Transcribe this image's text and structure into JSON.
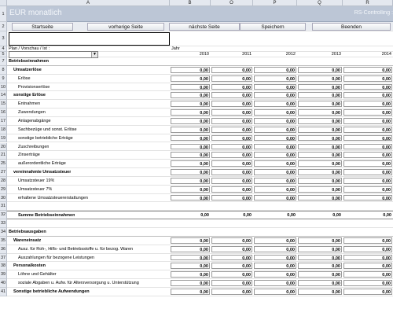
{
  "columns": [
    {
      "id": "A",
      "label": "A"
    },
    {
      "id": "B",
      "label": "B"
    },
    {
      "id": "O",
      "label": "O"
    },
    {
      "id": "P",
      "label": "P"
    },
    {
      "id": "Q",
      "label": "Q"
    },
    {
      "id": "R",
      "label": "R"
    }
  ],
  "header": {
    "title": "EÜR monatlich",
    "app": "RS-Controlling :"
  },
  "nav": {
    "start": "Startseite",
    "prev": "vorherige Seite",
    "next": "nächste Seite",
    "save": "Speichern",
    "quit": "Beenden"
  },
  "filter": {
    "label": "Plan / Vorschau / Ist :",
    "value": ""
  },
  "jahr_label": "Jahr",
  "years": [
    "2010",
    "2011",
    "2012",
    "2013",
    "2014"
  ],
  "rows": [
    {
      "n": "1"
    },
    {
      "n": "2"
    },
    {
      "n": "3"
    },
    {
      "n": "4"
    },
    {
      "n": "5"
    },
    {
      "n": "7",
      "label": "Betriebseinnahmen",
      "style": "section"
    },
    {
      "n": "8",
      "label": "Umsatzerlöse",
      "style": "group",
      "values": [
        "0,00",
        "0,00",
        "0,00",
        "0,00",
        "0,00"
      ]
    },
    {
      "n": "9",
      "label": "Erlöse",
      "style": "item",
      "values": [
        "0,00",
        "0,00",
        "0,00",
        "0,00",
        "0,00"
      ]
    },
    {
      "n": "10",
      "label": "Provisionserlöse",
      "style": "item",
      "values": [
        "0,00",
        "0,00",
        "0,00",
        "0,00",
        "0,00"
      ]
    },
    {
      "n": "14",
      "label": "sonstige Erlöse",
      "style": "group",
      "values": [
        "0,00",
        "0,00",
        "0,00",
        "0,00",
        "0,00"
      ]
    },
    {
      "n": "15",
      "label": "Entnahmen",
      "style": "item",
      "values": [
        "0,00",
        "0,00",
        "0,00",
        "0,00",
        "0,00"
      ]
    },
    {
      "n": "16",
      "label": "Zuwendungen",
      "style": "item",
      "values": [
        "0,00",
        "0,00",
        "0,00",
        "0,00",
        "0,00"
      ]
    },
    {
      "n": "17",
      "label": "Anlagenabgänge",
      "style": "item",
      "values": [
        "0,00",
        "0,00",
        "0,00",
        "0,00",
        "0,00"
      ]
    },
    {
      "n": "18",
      "label": "Sachbezüge und sonst. Erlöse",
      "style": "item",
      "values": [
        "0,00",
        "0,00",
        "0,00",
        "0,00",
        "0,00"
      ]
    },
    {
      "n": "19",
      "label": "sonstige betriebliche Erträge",
      "style": "item",
      "values": [
        "0,00",
        "0,00",
        "0,00",
        "0,00",
        "0,00"
      ]
    },
    {
      "n": "20",
      "label": "Zuschreibungen",
      "style": "item",
      "values": [
        "0,00",
        "0,00",
        "0,00",
        "0,00",
        "0,00"
      ]
    },
    {
      "n": "21",
      "label": "Zinserträge",
      "style": "item",
      "values": [
        "0,00",
        "0,00",
        "0,00",
        "0,00",
        "0,00"
      ]
    },
    {
      "n": "25",
      "label": "außerordentliche Erträge",
      "style": "item",
      "values": [
        "0,00",
        "0,00",
        "0,00",
        "0,00",
        "0,00"
      ]
    },
    {
      "n": "27",
      "label": "vereinnahmte Umsatzsteuer",
      "style": "group",
      "values": [
        "0,00",
        "0,00",
        "0,00",
        "0,00",
        "0,00"
      ]
    },
    {
      "n": "28",
      "label": "Umsatzsteuer 19%",
      "style": "item",
      "values": [
        "0,00",
        "0,00",
        "0,00",
        "0,00",
        "0,00"
      ]
    },
    {
      "n": "29",
      "label": "Umsatzsteuer 7%",
      "style": "item",
      "values": [
        "0,00",
        "0,00",
        "0,00",
        "0,00",
        "0,00"
      ]
    },
    {
      "n": "30",
      "label": "erhaltene Umsatzsteuererstattungen",
      "style": "item",
      "values": [
        "0,00",
        "0,00",
        "0,00",
        "0,00",
        "0,00"
      ]
    },
    {
      "n": "31"
    },
    {
      "n": "32",
      "label": "Summe Betriebseinnahmen",
      "style": "total",
      "values": [
        "0,00",
        "0,00",
        "0,00",
        "0,00",
        "0,00"
      ]
    },
    {
      "n": "33"
    },
    {
      "n": "34",
      "label": "Betriebsausgaben",
      "style": "section"
    },
    {
      "n": "35",
      "label": "Wareneinsatz",
      "style": "group",
      "values": [
        "0,00",
        "0,00",
        "0,00",
        "0,00",
        "0,00"
      ]
    },
    {
      "n": "36",
      "label": "Ausz. für Roh-, Hilfs- und Betriebsstoffe u. für bezog. Waren",
      "style": "item",
      "values": [
        "0,00",
        "0,00",
        "0,00",
        "0,00",
        "0,00"
      ]
    },
    {
      "n": "37",
      "label": "Auszahlungen für bezogene Leistungen",
      "style": "item",
      "values": [
        "0,00",
        "0,00",
        "0,00",
        "0,00",
        "0,00"
      ]
    },
    {
      "n": "38",
      "label": "Personalkosten",
      "style": "group",
      "values": [
        "0,00",
        "0,00",
        "0,00",
        "0,00",
        "0,00"
      ]
    },
    {
      "n": "39",
      "label": "Löhne und Gehälter",
      "style": "item",
      "values": [
        "0,00",
        "0,00",
        "0,00",
        "0,00",
        "0,00"
      ]
    },
    {
      "n": "40",
      "label": "soziale Abgaben u. Aufw. für Altersversorgung u. Unterstützung",
      "style": "item",
      "values": [
        "0,00",
        "0,00",
        "0,00",
        "0,00",
        "0,00"
      ]
    },
    {
      "n": "41",
      "label": "Sonstige betriebliche Aufwendungen",
      "style": "group",
      "values": [
        "0,00",
        "0,00",
        "0,00",
        "0,00",
        "0,00"
      ]
    }
  ]
}
